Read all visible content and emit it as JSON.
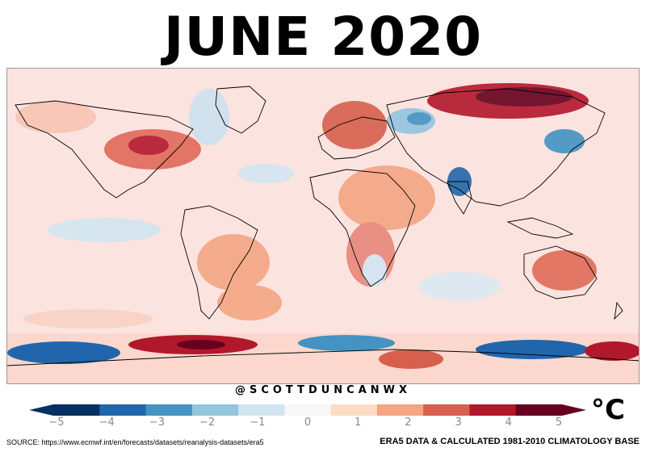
{
  "title": "JUNE 2020",
  "credit": "@SCOTTDUNCANWX",
  "colorbar": {
    "ticks": [
      "−5",
      "−4",
      "−3",
      "−2",
      "−1",
      "0",
      "1",
      "2",
      "3",
      "4",
      "5"
    ],
    "min": -5,
    "max": 5,
    "unit": "°C",
    "colors": [
      "#053061",
      "#2166ac",
      "#4393c3",
      "#92c5de",
      "#d1e5f0",
      "#f7f7f7",
      "#fddbc7",
      "#f4a582",
      "#d6604d",
      "#b2182b",
      "#67001f"
    ]
  },
  "source": "SOURCE: https://www.ecmwf.int/en/forecasts/datasets/reanalysis-datasets/era5",
  "base": "ERA5 DATA & CALCULATED 1981-2010 CLIMATOLOGY BASE"
}
